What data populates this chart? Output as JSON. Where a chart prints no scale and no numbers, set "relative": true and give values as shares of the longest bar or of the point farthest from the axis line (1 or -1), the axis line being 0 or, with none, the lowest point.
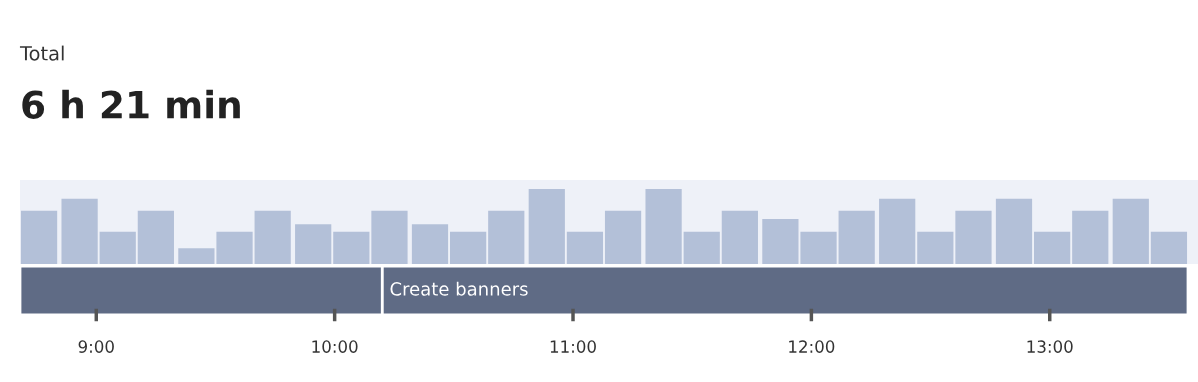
{
  "chart_data": [
    {
      "type": "bar",
      "title": "Total",
      "subtitle": "6 h 21 min",
      "relative": true,
      "legend": false,
      "x": [
        8.76,
        8.93,
        9.09,
        9.25,
        9.42,
        9.58,
        9.74,
        9.91,
        10.07,
        10.23,
        10.4,
        10.56,
        10.72,
        10.89,
        11.05,
        11.21,
        11.38,
        11.54,
        11.7,
        11.87,
        12.03,
        12.19,
        12.36,
        12.52,
        12.68,
        12.85,
        13.01,
        13.17,
        13.34,
        13.5
      ],
      "series": [
        {
          "color": "#b3c0d8",
          "values": [
            0.71,
            0.87,
            0.43,
            0.71,
            0.21,
            0.43,
            0.71,
            0.53,
            0.43,
            0.71,
            0.53,
            0.43,
            0.71,
            1,
            0.43,
            0.71,
            1,
            0.43,
            0.71,
            0.6,
            0.43,
            0.71,
            0.87,
            0.43,
            0.71,
            0.87,
            0.43,
            0.71,
            0.87,
            0.43
          ]
        }
      ],
      "xlim": [
        8.68,
        13.58
      ]
    },
    {
      "type": "bar",
      "orientation": "horizontal",
      "legend": false,
      "categories": [
        null
      ],
      "series": [
        {
          "color": "#5f6b85",
          "base": [
            8.68
          ],
          "values": [
            1.52
          ]
        },
        {
          "name": "Create banners",
          "color": "#5f6b85",
          "base": [
            10.2
          ],
          "values": [
            3.38
          ]
        }
      ],
      "xlim": [
        8.68,
        13.58
      ],
      "xticks": [
        {
          "value": 9,
          "label": "9:00"
        },
        {
          "value": 10,
          "label": "10:00"
        },
        {
          "value": 11,
          "label": "11:00"
        },
        {
          "value": 12,
          "label": "12:00"
        },
        {
          "value": 13,
          "label": "13:00"
        }
      ]
    }
  ]
}
